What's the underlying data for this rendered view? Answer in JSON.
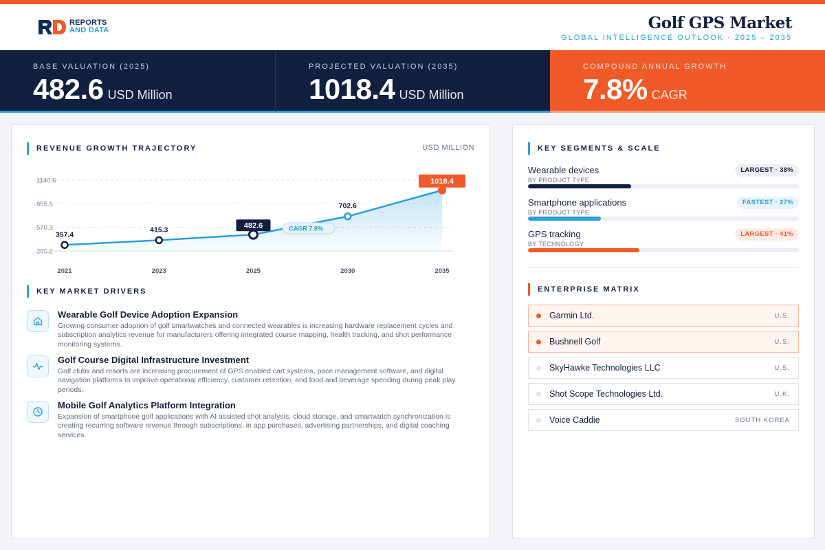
{
  "brand": {
    "line1": "REPORTS",
    "line2": "AND DATA"
  },
  "header": {
    "title": "Golf GPS Market",
    "subtitle": "GLOBAL INTELLIGENCE OUTLOOK  ·  2025 – 2035"
  },
  "kpis": [
    {
      "label": "BASE VALUATION (2025)",
      "value": "482.6",
      "unit": "USD Million"
    },
    {
      "label": "PROJECTED VALUATION (2035)",
      "value": "1018.4",
      "unit": "USD Million"
    },
    {
      "label": "COMPOUND ANNUAL GROWTH",
      "value": "7.8%",
      "unit": "CAGR"
    }
  ],
  "chart_section": {
    "title": "REVENUE GROWTH TRAJECTORY",
    "unit": "USD MILLION"
  },
  "chart_data": {
    "type": "area",
    "categories": [
      "2021",
      "2023",
      "2025",
      "2030",
      "2035"
    ],
    "values": [
      357.4,
      415.3,
      482.6,
      702.6,
      1018.4
    ],
    "y_ticks": [
      "1140.6",
      "855.5",
      "570.3",
      "285.2"
    ],
    "ylim": [
      285.2,
      1140.6
    ],
    "data_labels": [
      "357.4",
      "415.3",
      "482.6",
      "702.6",
      "1018.4"
    ],
    "highlight_base_index": 2,
    "highlight_end_index": 4,
    "annotation": "CAGR 7.8%",
    "grid": true,
    "colors": {
      "line": "#2a9fd8",
      "marker": "#12203f",
      "highlight": "#f05a28"
    }
  },
  "drivers_section": {
    "title": "KEY MARKET DRIVERS"
  },
  "drivers": [
    {
      "icon": "home-icon",
      "title": "Wearable Golf Device Adoption Expansion",
      "desc": "Growing consumer adoption of golf smartwatches and connected wearables is increasing hardware replacement cycles and subscription analytics revenue for manufacturers offering integrated course mapping, health tracking, and shot performance monitoring systems."
    },
    {
      "icon": "activity-icon",
      "title": "Golf Course Digital Infrastructure Investment",
      "desc": "Golf clubs and resorts are increasing procurement of GPS enabled cart systems, pace management software, and digital navigation platforms to improve operational efficiency, customer retention, and food and beverage spending during peak play periods."
    },
    {
      "icon": "clock-icon",
      "title": "Mobile Golf Analytics Platform Integration",
      "desc": "Expansion of smartphone golf applications with AI assisted shot analysis, cloud storage, and smartwatch synchronization is creating recurring software revenue through subscriptions, in app purchases, advertising partnerships, and digital coaching services."
    }
  ],
  "segments_section": {
    "title": "KEY SEGMENTS & SCALE"
  },
  "segments": [
    {
      "name": "Wearable devices",
      "by": "BY PRODUCT TYPE",
      "badge": "LARGEST · 38%",
      "share": 0.38,
      "color": "#12203f",
      "badge_bg": "#eceef2",
      "badge_fg": "#12203f"
    },
    {
      "name": "Smartphone applications",
      "by": "BY PRODUCT TYPE",
      "badge": "FASTEST · 27%",
      "share": 0.27,
      "color": "#2a9fd8",
      "badge_bg": "#e8f4fb",
      "badge_fg": "#2a9fd8"
    },
    {
      "name": "GPS tracking",
      "by": "BY TECHNOLOGY",
      "badge": "LARGEST · 41%",
      "share": 0.41,
      "color": "#f05a28",
      "badge_bg": "#fdece5",
      "badge_fg": "#f05a28"
    }
  ],
  "enterprise_section": {
    "title": "ENTERPRISE MATRIX"
  },
  "enterprises": [
    {
      "name": "Garmin Ltd.",
      "country": "U.S.",
      "highlight": true
    },
    {
      "name": "Bushnell Golf",
      "country": "U.S.",
      "highlight": true
    },
    {
      "name": "SkyHawke Technologies LLC",
      "country": "U.S.",
      "highlight": false
    },
    {
      "name": "Shot Scope Technologies Ltd.",
      "country": "U.K.",
      "highlight": false
    },
    {
      "name": "Voice Caddie",
      "country": "SOUTH KOREA",
      "highlight": false
    }
  ]
}
